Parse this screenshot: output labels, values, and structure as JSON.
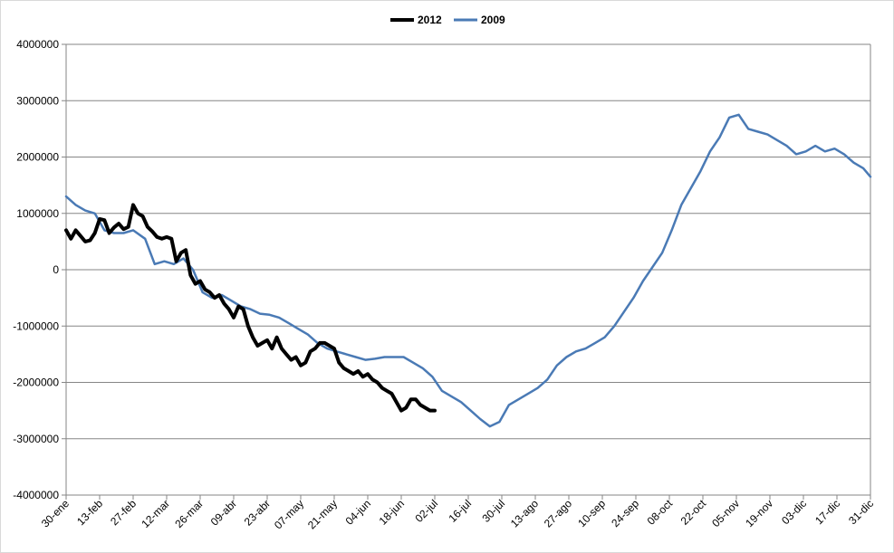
{
  "chart_data": {
    "type": "line",
    "title": "",
    "xlabel": "",
    "ylabel": "",
    "ylim": [
      -4000000,
      4000000
    ],
    "yticks": [
      4000000,
      3000000,
      2000000,
      1000000,
      0,
      -1000000,
      -2000000,
      -3000000,
      -4000000
    ],
    "ytick_labels": [
      "4000000",
      "3000000",
      "2000000",
      "1000000",
      "0",
      "-1000000",
      "-2000000",
      "-3000000",
      "-4000000"
    ],
    "xlim": [
      "30-ene",
      "31-dic"
    ],
    "xtick_labels": [
      "30-ene",
      "13-feb",
      "27-feb",
      "12-mar",
      "26-mar",
      "09-abr",
      "23-abr",
      "07-may",
      "21-may",
      "04-jun",
      "18-jun",
      "02-jul",
      "16-jul",
      "30-jul",
      "13-ago",
      "27-ago",
      "10-sep",
      "24-sep",
      "08-oct",
      "22-oct",
      "05-nov",
      "19-nov",
      "03-dic",
      "17-dic",
      "31-dic"
    ],
    "grid": true,
    "legend_position": "top-center",
    "series": [
      {
        "name": "2012",
        "color": "#000000",
        "x": [
          "30-ene",
          "01-feb",
          "03-feb",
          "05-feb",
          "07-feb",
          "09-feb",
          "11-feb",
          "13-feb",
          "15-feb",
          "17-feb",
          "19-feb",
          "21-feb",
          "23-feb",
          "25-feb",
          "27-feb",
          "29-feb",
          "02-mar",
          "04-mar",
          "06-mar",
          "08-mar",
          "10-mar",
          "12-mar",
          "14-mar",
          "16-mar",
          "18-mar",
          "20-mar",
          "22-mar",
          "24-mar",
          "26-mar",
          "28-mar",
          "30-mar",
          "01-abr",
          "03-abr",
          "05-abr",
          "07-abr",
          "09-abr",
          "11-abr",
          "13-abr",
          "15-abr",
          "17-abr",
          "19-abr",
          "21-abr",
          "23-abr",
          "25-abr",
          "27-abr",
          "29-abr",
          "01-may",
          "03-may",
          "05-may",
          "07-may",
          "09-may",
          "11-may",
          "13-may",
          "15-may",
          "17-may",
          "19-may",
          "21-may",
          "23-may",
          "25-may",
          "27-may",
          "29-may",
          "31-may",
          "02-jun",
          "04-jun",
          "06-jun",
          "08-jun",
          "10-jun",
          "12-jun",
          "14-jun",
          "16-jun",
          "18-jun",
          "20-jun",
          "22-jun",
          "24-jun",
          "26-jun",
          "28-jun",
          "30-jun",
          "02-jul"
        ],
        "y": [
          700000,
          550000,
          700000,
          600000,
          500000,
          520000,
          650000,
          900000,
          880000,
          650000,
          750000,
          820000,
          720000,
          760000,
          1150000,
          1000000,
          950000,
          760000,
          680000,
          580000,
          550000,
          580000,
          550000,
          150000,
          300000,
          350000,
          -100000,
          -250000,
          -200000,
          -350000,
          -400000,
          -500000,
          -450000,
          -600000,
          -700000,
          -850000,
          -650000,
          -700000,
          -1000000,
          -1200000,
          -1350000,
          -1300000,
          -1250000,
          -1400000,
          -1200000,
          -1400000,
          -1500000,
          -1600000,
          -1550000,
          -1700000,
          -1650000,
          -1450000,
          -1400000,
          -1300000,
          -1300000,
          -1350000,
          -1400000,
          -1650000,
          -1750000,
          -1800000,
          -1850000,
          -1800000,
          -1900000,
          -1850000,
          -1950000,
          -2000000,
          -2100000,
          -2150000,
          -2200000,
          -2350000,
          -2500000,
          -2450000,
          -2300000,
          -2300000,
          -2400000,
          -2450000,
          -2500000,
          -2500000
        ]
      },
      {
        "name": "2009",
        "color": "#4a7ab5",
        "x": [
          "30-ene",
          "03-feb",
          "07-feb",
          "11-feb",
          "15-feb",
          "19-feb",
          "23-feb",
          "27-feb",
          "03-mar",
          "07-mar",
          "11-mar",
          "15-mar",
          "19-mar",
          "23-mar",
          "27-mar",
          "31-mar",
          "04-abr",
          "08-abr",
          "12-abr",
          "16-abr",
          "20-abr",
          "24-abr",
          "28-abr",
          "02-may",
          "06-may",
          "10-may",
          "14-may",
          "18-may",
          "22-may",
          "26-may",
          "30-may",
          "03-jun",
          "07-jun",
          "11-jun",
          "15-jun",
          "19-jun",
          "23-jun",
          "27-jun",
          "01-jul",
          "05-jul",
          "09-jul",
          "13-jul",
          "17-jul",
          "21-jul",
          "25-jul",
          "29-jul",
          "02-ago",
          "06-ago",
          "10-ago",
          "14-ago",
          "18-ago",
          "22-ago",
          "26-ago",
          "30-ago",
          "03-sep",
          "07-sep",
          "11-sep",
          "15-sep",
          "19-sep",
          "23-sep",
          "27-sep",
          "01-oct",
          "05-oct",
          "09-oct",
          "13-oct",
          "17-oct",
          "21-oct",
          "25-oct",
          "29-oct",
          "02-nov",
          "06-nov",
          "10-nov",
          "14-nov",
          "18-nov",
          "22-nov",
          "26-nov",
          "30-nov",
          "04-dic",
          "08-dic",
          "12-dic",
          "16-dic",
          "20-dic",
          "24-dic",
          "28-dic",
          "31-dic"
        ],
        "y": [
          1300000,
          1150000,
          1050000,
          1000000,
          700000,
          650000,
          650000,
          700000,
          550000,
          100000,
          150000,
          100000,
          200000,
          0,
          -400000,
          -500000,
          -450000,
          -550000,
          -650000,
          -700000,
          -780000,
          -800000,
          -850000,
          -950000,
          -1050000,
          -1150000,
          -1300000,
          -1400000,
          -1450000,
          -1500000,
          -1550000,
          -1600000,
          -1580000,
          -1550000,
          -1550000,
          -1550000,
          -1650000,
          -1750000,
          -1900000,
          -2150000,
          -2250000,
          -2350000,
          -2500000,
          -2650000,
          -2780000,
          -2700000,
          -2400000,
          -2300000,
          -2200000,
          -2100000,
          -1950000,
          -1700000,
          -1550000,
          -1450000,
          -1400000,
          -1300000,
          -1200000,
          -1000000,
          -750000,
          -500000,
          -200000,
          50000,
          300000,
          700000,
          1150000,
          1450000,
          1750000,
          2100000,
          2350000,
          2700000,
          2750000,
          2500000,
          2450000,
          2400000,
          2300000,
          2200000,
          2050000,
          2100000,
          2200000,
          2100000,
          2150000,
          2050000,
          1900000,
          1800000,
          1650000
        ]
      }
    ]
  }
}
